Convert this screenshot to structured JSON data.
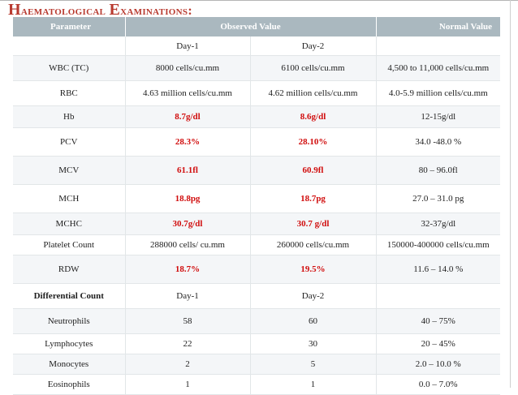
{
  "slide": {
    "title_first": "H",
    "title_first_rest": "aematological",
    "title_second": "E",
    "title_second_rest": "xaminations:"
  },
  "table": {
    "headers": [
      "Parameter",
      "Observed Value",
      "Normal Value"
    ],
    "subheader": [
      "Day-1",
      "Day-2"
    ],
    "rows": [
      {
        "parameter": "WBC (TC)",
        "day1": "8000 cells/cu.mm",
        "day2": "6100 cells/cu.mm",
        "normal": "4,500 to 11,000 cells/cu.mm"
      },
      {
        "parameter": "RBC",
        "day1": "4.63 million cells/cu.mm",
        "day2": "4.62 million cells/cu.mm",
        "normal": "4.0-5.9 million cells/cu.mm"
      },
      {
        "parameter": "Hb",
        "day1": "8.7g/dl",
        "day2": "8.6g/dl",
        "normal": "12-15g/dl"
      },
      {
        "parameter": "PCV",
        "day1": "28.3%",
        "day2": "28.10%",
        "normal": "34.0 -48.0 %"
      },
      {
        "parameter": "MCV",
        "day1": "61.1fl",
        "day2": "60.9fl",
        "normal": "80 – 96.0fl"
      },
      {
        "parameter": "MCH",
        "day1": "18.8pg",
        "day2": "18.7pg",
        "normal": "27.0 – 31.0 pg"
      },
      {
        "parameter": "MCHC",
        "day1": "30.7g/dl",
        "day2": "30.7 g/dl",
        "normal": "32-37g/dl"
      },
      {
        "parameter": "Platelet Count",
        "day1": "288000 cells/ cu.mm",
        "day2": "260000 cells/cu.mm",
        "normal": "150000-400000 cells/cu.mm"
      },
      {
        "parameter": "RDW",
        "day1": "18.7%",
        "day2": "19.5%",
        "normal": "11.6 – 14.0 %"
      }
    ],
    "differential": {
      "label": "Differential Count",
      "day1": "Day-1",
      "day2": "Day-2",
      "rows": [
        {
          "parameter": "Neutrophils",
          "day1": "58",
          "day2": "60",
          "normal": "40 – 75%"
        },
        {
          "parameter": "Lymphocytes",
          "day1": "22",
          "day2": "30",
          "normal": "20 – 45%"
        },
        {
          "parameter": "Monocytes",
          "day1": "2",
          "day2": "5",
          "normal": "2.0 – 10.0 %"
        },
        {
          "parameter": "Eosinophils",
          "day1": "1",
          "day2": "1",
          "normal": "0.0 – 7.0%"
        }
      ]
    }
  },
  "colors": {
    "title": "#b83a2f",
    "header_bg": "#aab8bf",
    "abnormal": "#d10e0e"
  }
}
